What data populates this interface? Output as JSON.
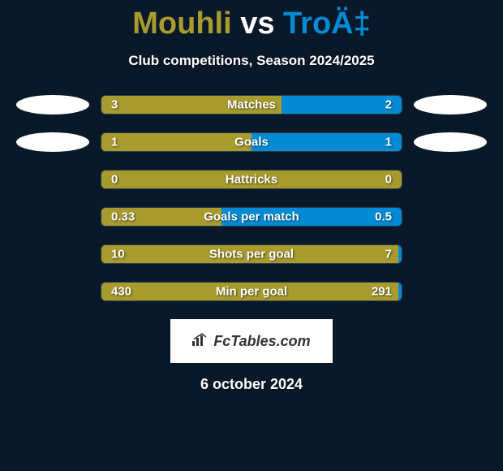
{
  "header": {
    "player_left": "Mouhli",
    "vs_text": "vs",
    "player_right": "TroÄ‡",
    "subtitle": "Club competitions, Season 2024/2025",
    "title_left_color": "#a89b2e",
    "title_right_color": "#028bd4",
    "title_vs_color": "#ffffff"
  },
  "colors": {
    "background": "#0a1929",
    "left_bar": "#a89b2e",
    "right_bar": "#028bd4",
    "avatar_bg": "#ffffff"
  },
  "stats": [
    {
      "label": "Matches",
      "left_value": "3",
      "right_value": "2",
      "left_pct": 60,
      "right_pct": 40,
      "show_left_avatar": true,
      "show_right_avatar": true
    },
    {
      "label": "Goals",
      "left_value": "1",
      "right_value": "1",
      "left_pct": 50,
      "right_pct": 50,
      "show_left_avatar": true,
      "show_right_avatar": true
    },
    {
      "label": "Hattricks",
      "left_value": "0",
      "right_value": "0",
      "left_pct": 100,
      "right_pct": 0,
      "show_left_avatar": false,
      "show_right_avatar": false
    },
    {
      "label": "Goals per match",
      "left_value": "0.33",
      "right_value": "0.5",
      "left_pct": 40,
      "right_pct": 60,
      "show_left_avatar": false,
      "show_right_avatar": false
    },
    {
      "label": "Shots per goal",
      "left_value": "10",
      "right_value": "7",
      "left_pct": 99,
      "right_pct": 1,
      "show_left_avatar": false,
      "show_right_avatar": false
    },
    {
      "label": "Min per goal",
      "left_value": "430",
      "right_value": "291",
      "left_pct": 99,
      "right_pct": 1,
      "show_left_avatar": false,
      "show_right_avatar": false
    }
  ],
  "footer": {
    "brand_text": "FcTables.com",
    "date_text": "6 october 2024"
  }
}
